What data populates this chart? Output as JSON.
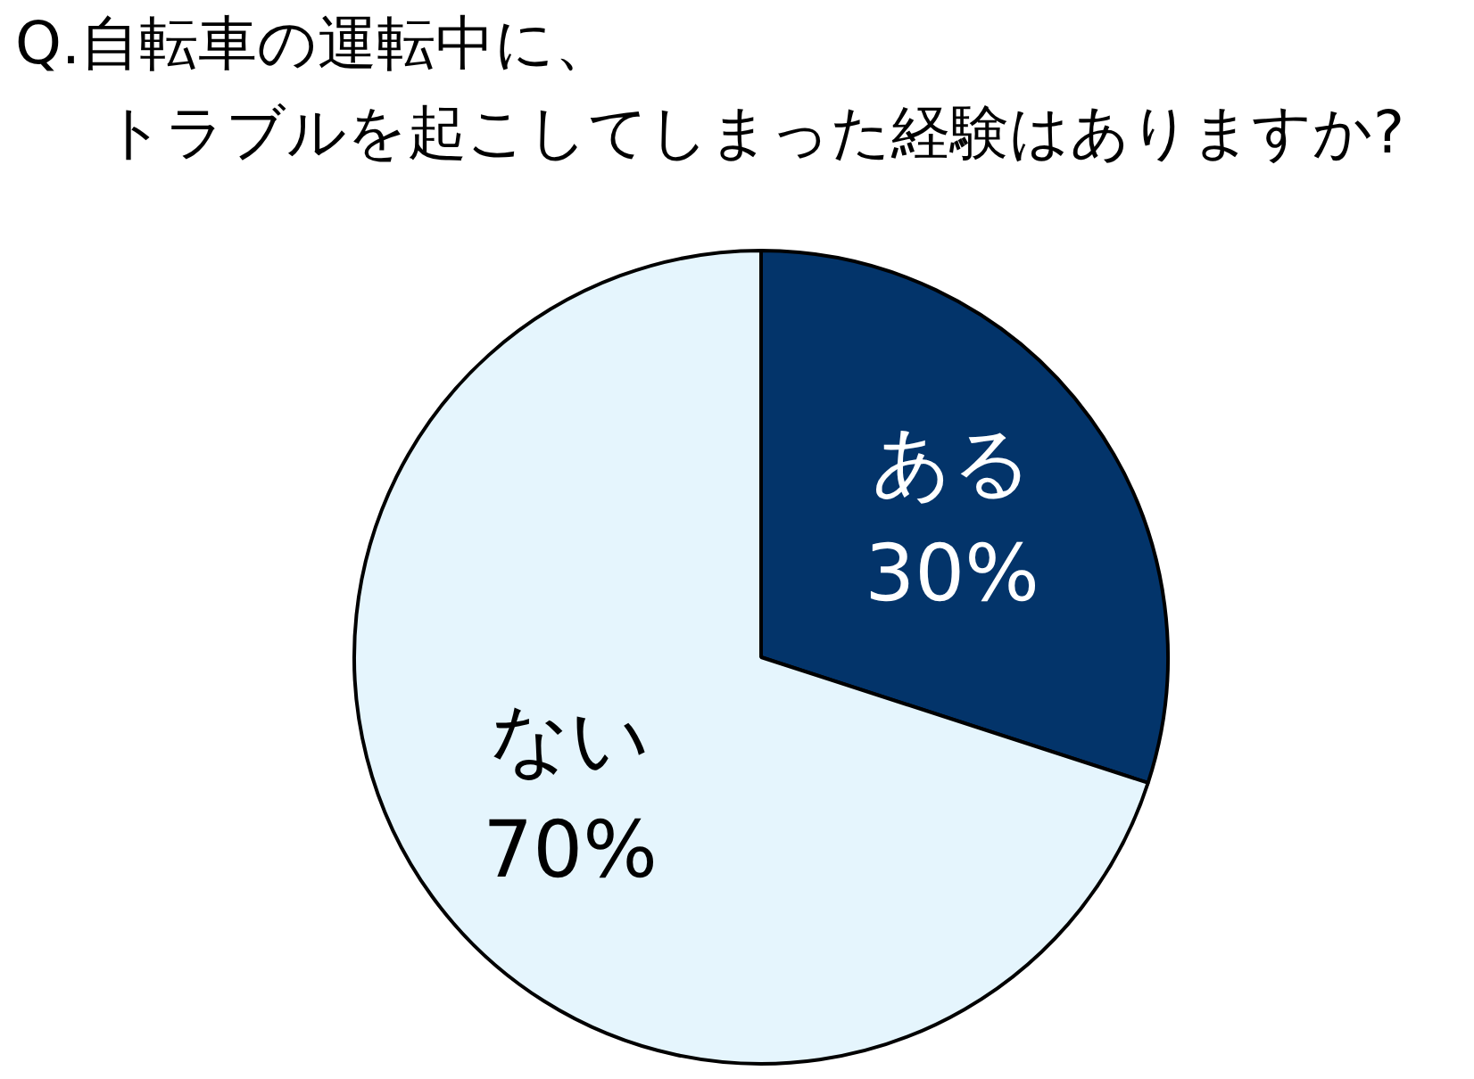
{
  "chart_data": {
    "type": "pie",
    "title": "Q.自転車の運転中に、トラブルを起こしてしまった経験はありますか?",
    "categories": [
      "ある",
      "ない"
    ],
    "values": [
      30,
      70
    ],
    "colors": [
      "#03346a",
      "#e5f5fd"
    ],
    "value_labels": [
      "30%",
      "70%"
    ]
  }
}
